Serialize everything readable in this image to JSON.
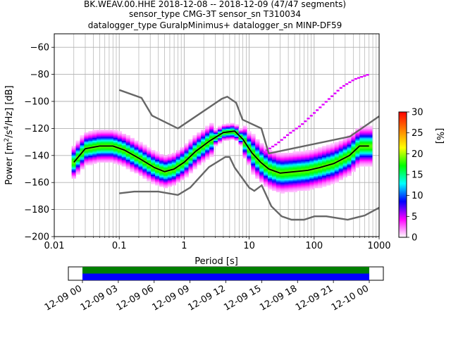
{
  "title_lines": [
    "BK.WEAV.00.HHE   2018-12-08 -- 2018-12-09  (47/47 segments)",
    "sensor_type CMG-3T sensor_sn T310034",
    "datalogger_type GuralpMinimus+ datalogger_sn MINP-DF59"
  ],
  "chart_data": [
    {
      "type": "heatmap",
      "title": "BK.WEAV.00.HHE   2018-12-08 -- 2018-12-09  (47/47 segments)",
      "xlabel": "Period [s]",
      "ylabel_parts": {
        "pre": "Power [m",
        "sup1": "2",
        "mid": "/s",
        "sup2": "4",
        "post": "/Hz] [dB]"
      },
      "xscale": "log",
      "xlim": [
        0.01,
        1000
      ],
      "ylim": [
        -200,
        -50
      ],
      "xticks": [
        0.01,
        0.1,
        1,
        10,
        100,
        1000
      ],
      "xtick_labels": [
        "0.01",
        "0.1",
        "1",
        "10",
        "100",
        "1000"
      ],
      "yticks": [
        -200,
        -180,
        -160,
        -140,
        -120,
        -100,
        -80,
        -60
      ],
      "ytick_labels": [
        "−200",
        "−180",
        "−160",
        "−140",
        "−120",
        "−100",
        "−80",
        "−60"
      ],
      "grid": true,
      "nhnm": {
        "x": [
          0.1,
          0.17,
          0.4,
          0.8,
          1.24,
          2.4,
          4.3,
          5.0,
          6.0,
          10.0,
          12.0,
          15.6,
          21.9,
          31.6,
          45.0,
          70.0,
          101.0,
          154.0,
          328.0,
          600.0,
          1000.0
        ],
        "y": [
          -168,
          -166.7,
          -166.7,
          -169.2,
          -163.7,
          -148.6,
          -141.1,
          -141.1,
          -149.0,
          -163.8,
          -166.2,
          -162.1,
          -177.5,
          -185.0,
          -187.5,
          -187.5,
          -185.0,
          -185.0,
          -187.5,
          -184.4,
          -178.6
        ]
      },
      "nlnm": {
        "x": [
          0.1,
          0.22,
          0.32,
          0.8,
          3.8,
          4.6,
          6.3,
          7.9,
          15.4,
          20.0,
          354.8,
          1000.0
        ],
        "y": [
          -91.5,
          -97.4,
          -110.5,
          -120.0,
          -98.0,
          -96.5,
          -101.0,
          -113.5,
          -120.0,
          -138.5,
          -126.0,
          -111.0
        ]
      },
      "mode_line": {
        "x": [
          0.02,
          0.03,
          0.05,
          0.08,
          0.12,
          0.2,
          0.35,
          0.5,
          0.7,
          1.0,
          1.5,
          2.5,
          4.0,
          6.0,
          8.0,
          11.0,
          15.0,
          20.0,
          30.0,
          50.0,
          80.0,
          120.0,
          200.0,
          350.0,
          500.0,
          700.0
        ],
        "y": [
          -145,
          -135,
          -133,
          -133,
          -136,
          -142,
          -149,
          -152,
          -150,
          -145,
          -137,
          -129,
          -123,
          -122,
          -128,
          -138,
          -145,
          -150,
          -153,
          -152,
          -151,
          -149,
          -146,
          -140,
          -133,
          -133
        ]
      },
      "rising_branch": {
        "x": [
          16,
          25,
          40,
          60,
          100,
          150,
          250,
          400,
          700
        ],
        "y": [
          -138,
          -132,
          -124,
          -118,
          -108,
          -100,
          -90,
          -84,
          -80
        ]
      },
      "colorbar": {
        "label": "[%]",
        "min": 0,
        "max": 30,
        "ticks": [
          0,
          5,
          10,
          15,
          20,
          25,
          30
        ],
        "colors": [
          "#ffffff",
          "#ff00ff",
          "#0000ff",
          "#00ffff",
          "#00ff00",
          "#ffff00",
          "#ff8000",
          "#ff0000"
        ]
      }
    },
    {
      "type": "timeline",
      "xticks": [
        "12-09 00",
        "12-09 03",
        "12-09 06",
        "12-09 09",
        "12-09 12",
        "12-09 15",
        "12-09 18",
        "12-09 21",
        "12-10 00"
      ],
      "bars": [
        {
          "color": "#008000",
          "coverage": [
            0,
            1
          ]
        },
        {
          "color": "#0000ff",
          "coverage": [
            0,
            1
          ]
        }
      ]
    }
  ]
}
